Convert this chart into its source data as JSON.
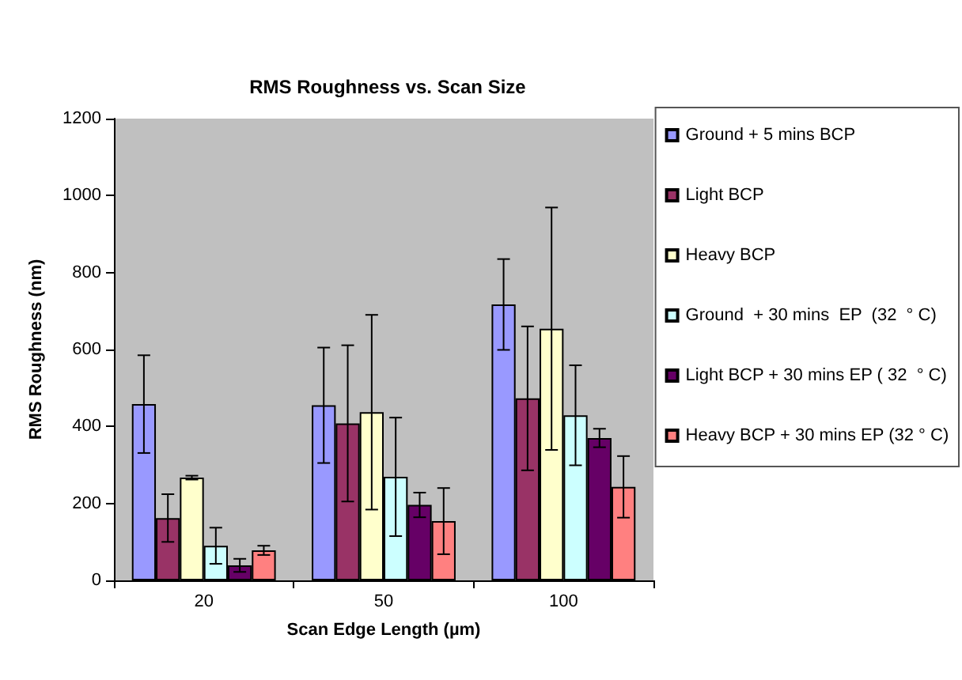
{
  "chart_data": {
    "type": "bar",
    "title": "RMS Roughness vs. Scan Size",
    "xlabel": "Scan Edge Length (µm)",
    "ylabel": "RMS Roughness (nm)",
    "categories": [
      "20",
      "50",
      "100"
    ],
    "series": [
      {
        "name": "Ground + 5 mins BCP",
        "color": "#9999ff",
        "values": [
          458,
          455,
          717
        ],
        "errors": [
          127,
          150,
          118
        ]
      },
      {
        "name": "Light BCP",
        "color": "#993366",
        "values": [
          162,
          408,
          473
        ],
        "errors": [
          62,
          203,
          187
        ]
      },
      {
        "name": "Heavy BCP",
        "color": "#ffffcc",
        "values": [
          267,
          437,
          654
        ],
        "errors": [
          5,
          253,
          315
        ]
      },
      {
        "name": "Ground  + 30 mins  EP  (32  ° C)",
        "color": "#ccffff",
        "values": [
          90,
          269,
          429
        ],
        "errors": [
          47,
          154,
          130
        ]
      },
      {
        "name": "Light BCP + 30 mins EP ( 32  ° C)",
        "color": "#660066",
        "values": [
          39,
          196,
          370
        ],
        "errors": [
          17,
          32,
          24
        ]
      },
      {
        "name": "Heavy BCP + 30 mins EP (32 ° C)",
        "color": "#ff8080",
        "values": [
          78,
          154,
          243
        ],
        "errors": [
          12,
          86,
          80
        ]
      }
    ],
    "ylim": [
      0,
      1200
    ],
    "yticks": [
      0,
      200,
      400,
      600,
      800,
      1000,
      1200
    ],
    "grid": false,
    "legend": "right"
  }
}
